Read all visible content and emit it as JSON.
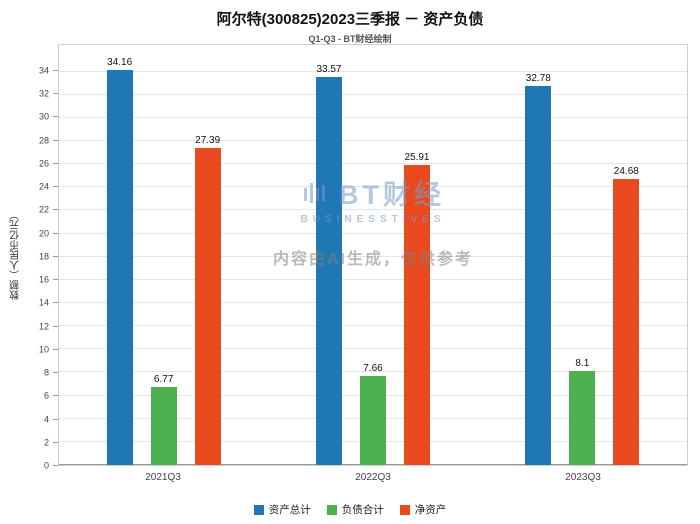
{
  "title": "阿尔特(300825)2023三季报 － 资产负债",
  "subtitle": "Q1-Q3 - BT财经绘制",
  "watermark": {
    "logo_text": "BT财经",
    "logo_sub": "BUSINESSTIVES",
    "disclaimer": "内容由AI生成，仅供参考"
  },
  "chart_data": {
    "type": "bar",
    "categories": [
      "2021Q3",
      "2022Q3",
      "2023Q3"
    ],
    "series": [
      {
        "name": "资产总计",
        "color": "#1F77B4",
        "values": [
          34.16,
          33.57,
          32.78
        ]
      },
      {
        "name": "负债合计",
        "color": "#4CAF50",
        "values": [
          6.77,
          7.66,
          8.1
        ]
      },
      {
        "name": "净资产",
        "color": "#E8491F",
        "values": [
          27.39,
          25.91,
          24.68
        ]
      }
    ],
    "title": "阿尔特(300825)2023三季报 － 资产负债",
    "xlabel": "",
    "ylabel": "数额（人民币亿元）",
    "ylim": [
      0,
      36.3
    ],
    "yticks": [
      0,
      2,
      4,
      6,
      8,
      10,
      12,
      14,
      16,
      18,
      20,
      22,
      24,
      26,
      28,
      30,
      32,
      34
    ],
    "grid": true,
    "legend_position": "bottom"
  }
}
